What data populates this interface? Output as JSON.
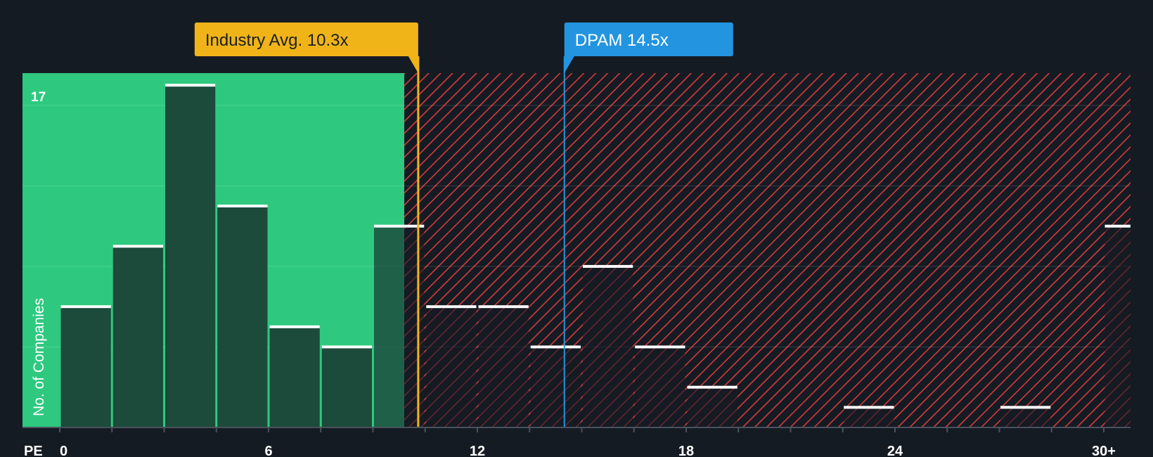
{
  "chart_data": {
    "type": "bar",
    "title": "",
    "xlabel": "PE",
    "ylabel": "No. of Companies",
    "x_ticks": [
      "0",
      "6",
      "12",
      "18",
      "24",
      "30+"
    ],
    "x_tick_values": [
      0,
      6,
      12,
      18,
      24,
      30
    ],
    "xlim": [
      0,
      30.8
    ],
    "ylim": [
      0,
      17.6
    ],
    "y_max_label": "17",
    "bin_width": 1.5,
    "bins": [
      {
        "start": 0,
        "value": 6
      },
      {
        "start": 1.5,
        "value": 9
      },
      {
        "start": 3,
        "value": 17
      },
      {
        "start": 4.5,
        "value": 11
      },
      {
        "start": 6,
        "value": 5
      },
      {
        "start": 7.5,
        "value": 4
      },
      {
        "start": 9,
        "value": 10
      },
      {
        "start": 10.5,
        "value": 6
      },
      {
        "start": 12,
        "value": 6
      },
      {
        "start": 13.5,
        "value": 4
      },
      {
        "start": 15,
        "value": 8
      },
      {
        "start": 16.5,
        "value": 4
      },
      {
        "start": 18,
        "value": 2
      },
      {
        "start": 19.5,
        "value": 0
      },
      {
        "start": 21,
        "value": 0
      },
      {
        "start": 22.5,
        "value": 1
      },
      {
        "start": 24,
        "value": 0
      },
      {
        "start": 25.5,
        "value": 0
      },
      {
        "start": 27,
        "value": 1
      },
      {
        "start": 28.5,
        "value": 0
      },
      {
        "start": 30,
        "value": 10
      }
    ],
    "highlight_bin_index": 13,
    "fair_region_end": 9.9,
    "industry_avg": {
      "value": 10.3,
      "label": "Industry Avg. 10.3x"
    },
    "company": {
      "value": 14.5,
      "label": "DPAM 14.5x"
    },
    "colors": {
      "background": "#151b23",
      "fair_region": "#2ec97f",
      "hatch_region": "#d53a3c",
      "bar": "#1c4a3b",
      "bar_cap": "#ffffff",
      "highlight_bar": "#2394e0",
      "industry_callout": "#f0b419",
      "company_callout": "#2394e0",
      "axis": "#4a525c"
    }
  }
}
